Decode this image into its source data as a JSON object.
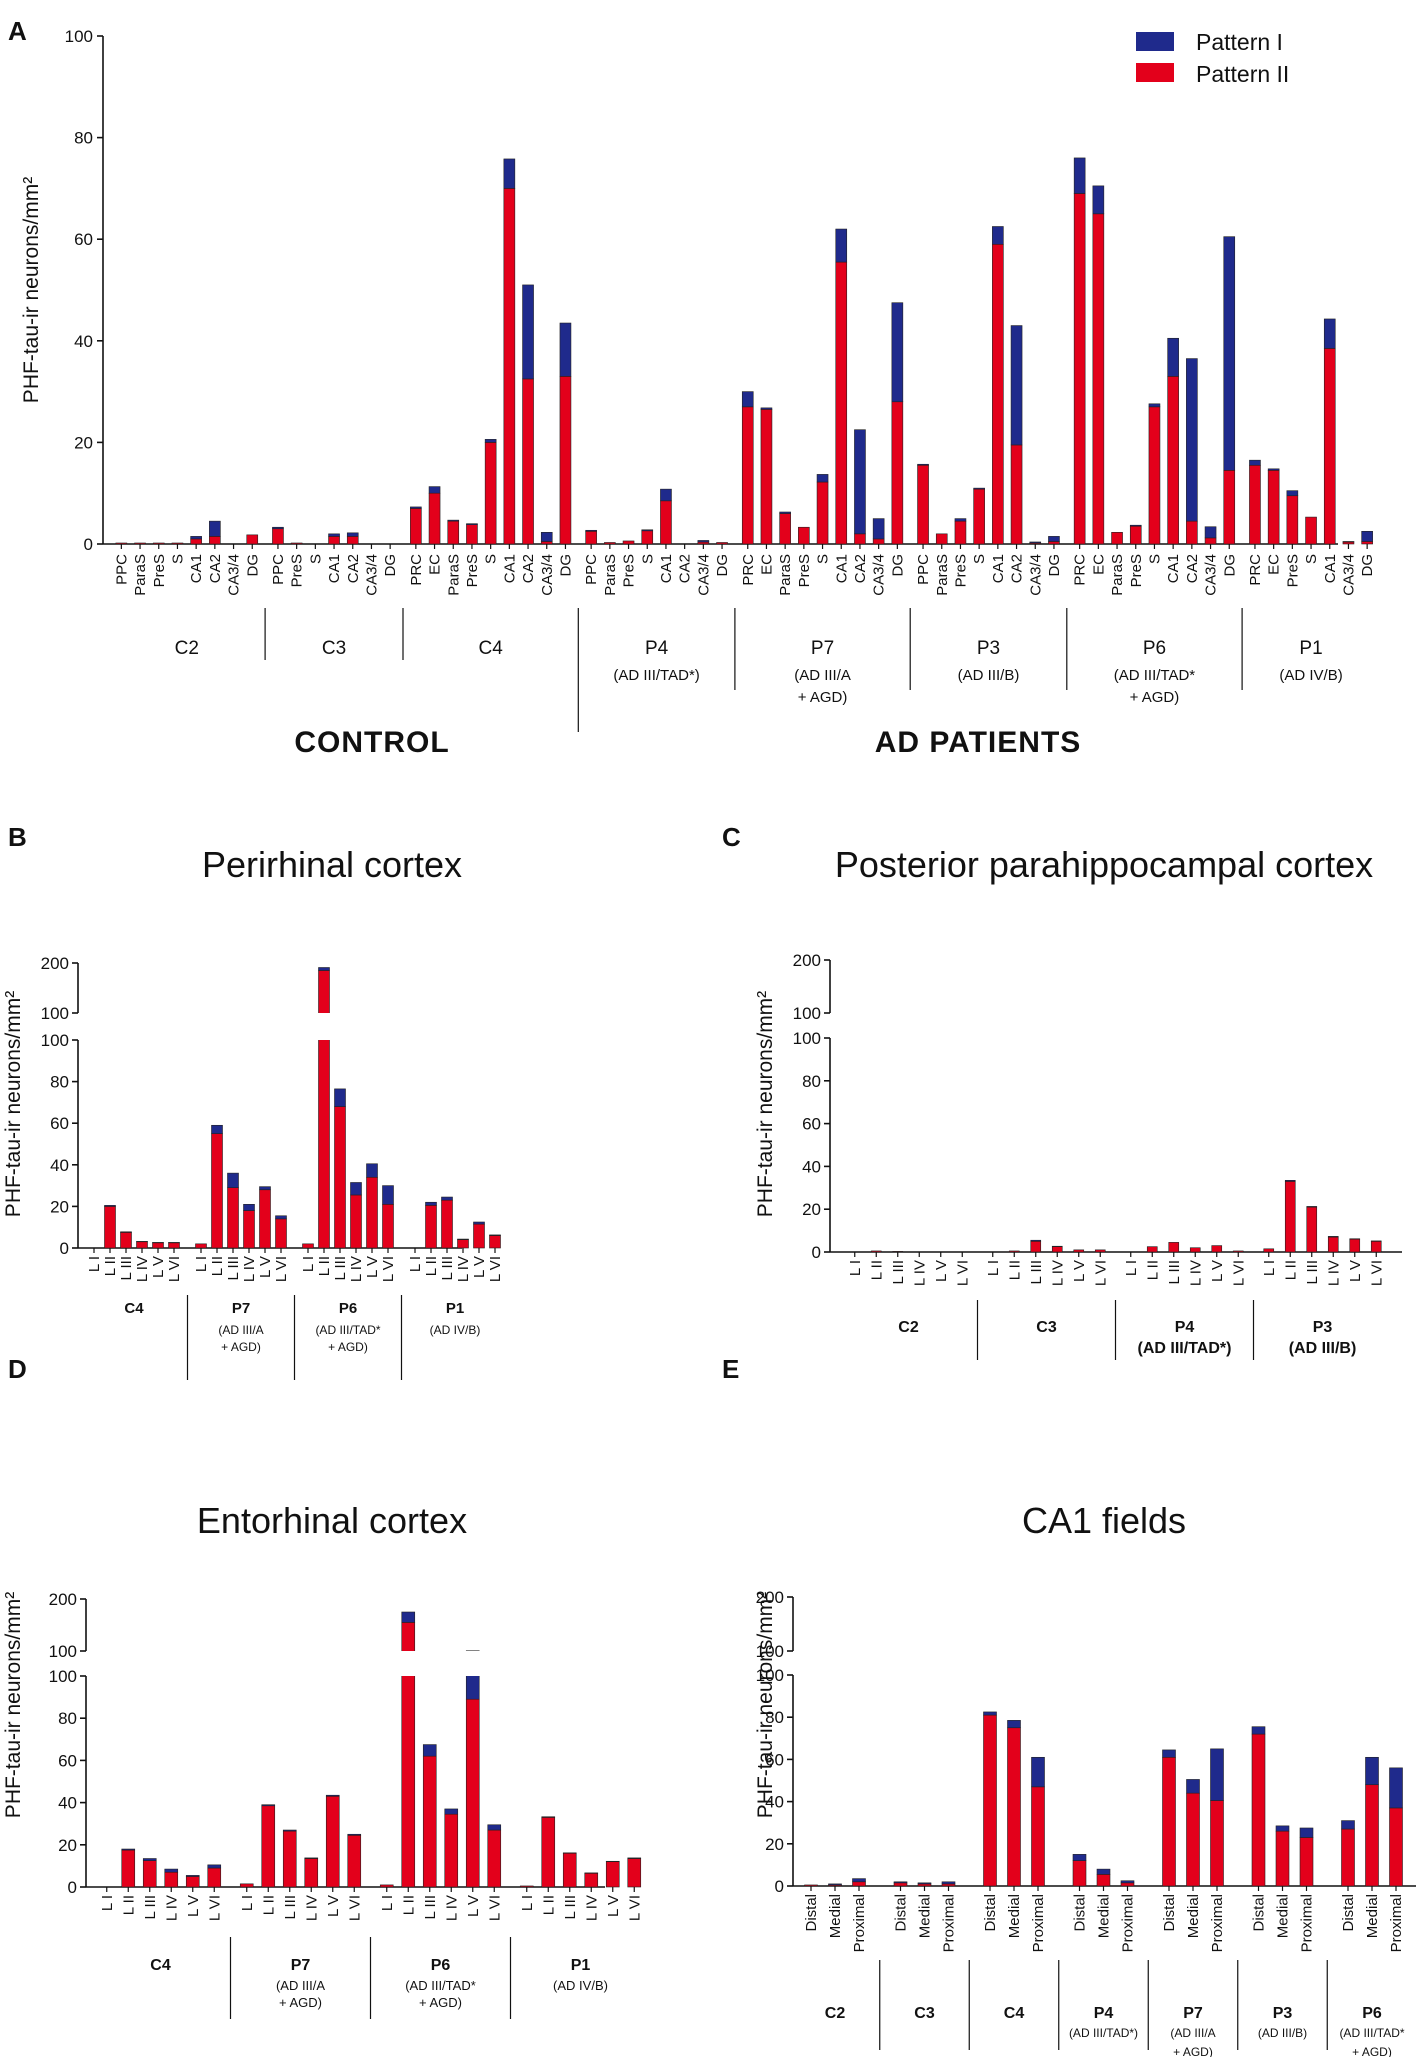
{
  "colors": {
    "pattern1": "#1f2a8c",
    "pattern2": "#e3001b",
    "axis": "#111111"
  },
  "legend": [
    "Pattern I",
    "Pattern II"
  ],
  "panel_a": {
    "label": "A",
    "ylabel": "PHF-tau-ir neurons/mm²",
    "yticks": [
      "0",
      "20",
      "40",
      "60",
      "80",
      "100"
    ],
    "group_control": "CONTROL",
    "group_ad": "AD PATIENTS",
    "cases": [
      {
        "name": "C2",
        "sub": []
      },
      {
        "name": "C3",
        "sub": []
      },
      {
        "name": "C4",
        "sub": []
      },
      {
        "name": "P4",
        "sub": [
          "(AD III/TAD*)"
        ]
      },
      {
        "name": "P7",
        "sub": [
          "(AD III/A",
          "+ AGD)"
        ]
      },
      {
        "name": "P3",
        "sub": [
          "(AD III/B)"
        ]
      },
      {
        "name": "P6",
        "sub": [
          "(AD III/TAD*",
          "+ AGD)"
        ]
      },
      {
        "name": "P1",
        "sub": [
          "(AD IV/B)"
        ]
      }
    ]
  },
  "panel_b": {
    "label": "B",
    "title": "Perirhinal cortex",
    "ylabel": "PHF-tau-ir neurons/mm²",
    "yticks_low": [
      "0",
      "20",
      "40",
      "60",
      "80",
      "100"
    ],
    "yticks_high": [
      "100",
      "200"
    ],
    "cases": [
      {
        "name": "C4",
        "sub": []
      },
      {
        "name": "P7",
        "sub": [
          "(AD III/A",
          "+ AGD)"
        ]
      },
      {
        "name": "P6",
        "sub": [
          "(AD III/TAD*",
          "+ AGD)"
        ]
      },
      {
        "name": "P1",
        "sub": [
          "(AD IV/B)"
        ]
      }
    ]
  },
  "panel_c": {
    "label": "C",
    "title": "Posterior parahippocampal cortex",
    "ylabel": "PHF-tau-ir neurons/mm²",
    "yticks_low": [
      "0",
      "20",
      "40",
      "60",
      "80",
      "100"
    ],
    "yticks_high": [
      "100",
      "200"
    ],
    "cases": [
      {
        "name": "C2",
        "sub": []
      },
      {
        "name": "C3",
        "sub": []
      },
      {
        "name": "P4",
        "sub": [
          "(AD III/TAD*)"
        ]
      },
      {
        "name": "P3",
        "sub": [
          "(AD III/B)"
        ]
      }
    ]
  },
  "panel_d": {
    "label": "D",
    "title": "Entorhinal cortex",
    "ylabel": "PHF-tau-ir neurons/mm²",
    "yticks_low": [
      "0",
      "20",
      "40",
      "60",
      "80",
      "100"
    ],
    "yticks_high": [
      "100",
      "200"
    ],
    "cases": [
      {
        "name": "C4",
        "sub": []
      },
      {
        "name": "P7",
        "sub": [
          "(AD III/A",
          "+ AGD)"
        ]
      },
      {
        "name": "P6",
        "sub": [
          "(AD III/TAD*",
          "+ AGD)"
        ]
      },
      {
        "name": "P1",
        "sub": [
          "(AD IV/B)"
        ]
      }
    ]
  },
  "panel_e": {
    "label": "E",
    "title": "CA1 fields",
    "ylabel": "PHF-tau-ir neurons/mm²",
    "yticks_low": [
      "0",
      "20",
      "40",
      "60",
      "80",
      "100"
    ],
    "yticks_high": [
      "100",
      "200"
    ],
    "cases": [
      {
        "name": "C2",
        "sub": []
      },
      {
        "name": "C3",
        "sub": []
      },
      {
        "name": "C4",
        "sub": []
      },
      {
        "name": "P4",
        "sub": [
          "(AD III/TAD*)"
        ]
      },
      {
        "name": "P7",
        "sub": [
          "(AD III/A",
          "+ AGD)"
        ]
      },
      {
        "name": "P3",
        "sub": [
          "(AD III/B)"
        ]
      },
      {
        "name": "P6",
        "sub": [
          "(AD III/TAD*",
          "+ AGD)"
        ]
      }
    ]
  },
  "chart_data": [
    {
      "type": "bar",
      "stacked": true,
      "panel": "A",
      "title": "",
      "xlabel": "",
      "ylabel": "PHF-tau-ir neurons/mm²",
      "ylim": [
        0,
        100
      ],
      "series_names": [
        "Pattern II",
        "Pattern I"
      ],
      "groups": [
        {
          "case": "C2",
          "categories": [
            "PPC",
            "ParaS",
            "PreS",
            "S",
            "CA1",
            "CA2",
            "CA3/4",
            "DG"
          ],
          "pattern2": [
            0.2,
            0.2,
            0.2,
            0.2,
            1,
            1.5,
            0,
            1.8
          ],
          "pattern1": [
            0,
            0,
            0,
            0,
            0.5,
            3,
            0,
            0
          ]
        },
        {
          "case": "C3",
          "categories": [
            "PPC",
            "PreS",
            "S",
            "CA1",
            "CA2",
            "CA3/4",
            "DG"
          ],
          "pattern2": [
            3,
            0.2,
            0,
            1.5,
            1.5,
            0,
            0
          ],
          "pattern1": [
            0.3,
            0,
            0,
            0.5,
            0.7,
            0,
            0
          ]
        },
        {
          "case": "C4",
          "categories": [
            "PRC",
            "EC",
            "ParaS",
            "PreS",
            "S",
            "CA1",
            "CA2",
            "CA3/4",
            "DG"
          ],
          "pattern2": [
            7,
            10,
            4.5,
            3.8,
            20,
            70,
            32.5,
            0.5,
            33
          ],
          "pattern1": [
            0.3,
            1.3,
            0.2,
            0.2,
            0.6,
            5.8,
            18.5,
            1.8,
            10.5
          ]
        },
        {
          "case": "P4",
          "categories": [
            "PPC",
            "ParaS",
            "PreS",
            "S",
            "CA1",
            "CA2",
            "CA3/4",
            "DG"
          ],
          "pattern2": [
            2.5,
            0.3,
            0.6,
            2.6,
            8.5,
            0,
            0.4,
            0.3
          ],
          "pattern1": [
            0.2,
            0,
            0,
            0.2,
            2.3,
            0,
            0.3,
            0
          ]
        },
        {
          "case": "P7",
          "categories": [
            "PRC",
            "EC",
            "ParaS",
            "PreS",
            "S",
            "CA1",
            "CA2",
            "CA3/4",
            "DG"
          ],
          "pattern2": [
            27,
            26.5,
            6,
            3.3,
            12.2,
            55.5,
            2,
            1,
            28
          ],
          "pattern1": [
            3,
            0.3,
            0.3,
            0,
            1.5,
            6.5,
            20.5,
            4,
            19.5
          ]
        },
        {
          "case": "P3",
          "categories": [
            "PPC",
            "ParaS",
            "PreS",
            "S",
            "CA1",
            "CA2",
            "CA3/4",
            "DG"
          ],
          "pattern2": [
            15.5,
            2,
            4.5,
            10.8,
            59,
            19.5,
            0.2,
            0.5
          ],
          "pattern1": [
            0.2,
            0,
            0.5,
            0.2,
            3.5,
            23.5,
            0.2,
            1
          ]
        },
        {
          "case": "P6",
          "categories": [
            "PRC",
            "EC",
            "ParaS",
            "PreS",
            "S",
            "CA1",
            "CA2",
            "CA3/4",
            "DG"
          ],
          "pattern2": [
            69,
            65,
            2.3,
            3.5,
            27,
            33,
            4.5,
            1.2,
            14.5
          ],
          "pattern1": [
            7,
            5.5,
            0,
            0.2,
            0.6,
            7.5,
            32,
            2.2,
            46
          ]
        },
        {
          "case": "P1",
          "categories": [
            "PRC",
            "EC",
            "PreS",
            "S",
            "CA1",
            "CA3/4",
            "DG"
          ],
          "pattern2": [
            15.5,
            14.5,
            9.5,
            5.3,
            38.5,
            0.4,
            0.5
          ],
          "pattern1": [
            1,
            0.3,
            1,
            0,
            5.8,
            0.1,
            2
          ]
        }
      ]
    },
    {
      "type": "bar",
      "stacked": true,
      "panel": "B",
      "title": "Perirhinal cortex",
      "ylabel": "PHF-tau-ir neurons/mm²",
      "ylim": [
        0,
        200
      ],
      "axis_break": 100,
      "series_names": [
        "Pattern II",
        "Pattern I"
      ],
      "groups": [
        {
          "case": "C4",
          "categories": [
            "L I",
            "L II",
            "L III",
            "L IV",
            "L V",
            "L VI"
          ],
          "pattern2": [
            0,
            20,
            7.5,
            3,
            2.5,
            2.5
          ],
          "pattern1": [
            0,
            0.5,
            0.3,
            0.2,
            0.2,
            0.2
          ]
        },
        {
          "case": "P7",
          "categories": [
            "L I",
            "L II",
            "L III",
            "L IV",
            "L V",
            "L VI"
          ],
          "pattern2": [
            2,
            55,
            29,
            18,
            28,
            14
          ],
          "pattern1": [
            0,
            4,
            7,
            3,
            1.5,
            1.5
          ]
        },
        {
          "case": "P6",
          "categories": [
            "L I",
            "L II",
            "L III",
            "L IV",
            "L V",
            "L VI"
          ],
          "pattern2": [
            2,
            185,
            68,
            25.5,
            34,
            21
          ],
          "pattern1": [
            0,
            6,
            8.5,
            6,
            6.5,
            9
          ]
        },
        {
          "case": "P1",
          "categories": [
            "L I",
            "L II",
            "L III",
            "L IV",
            "L V",
            "L VI"
          ],
          "pattern2": [
            0,
            20.5,
            23,
            4,
            11.5,
            6
          ],
          "pattern1": [
            0,
            1.5,
            1.5,
            0.3,
            1,
            0.3
          ]
        }
      ]
    },
    {
      "type": "bar",
      "stacked": true,
      "panel": "C",
      "title": "Posterior parahippocampal cortex",
      "ylabel": "PHF-tau-ir neurons/mm²",
      "ylim": [
        0,
        200
      ],
      "axis_break": 100,
      "series_names": [
        "Pattern II",
        "Pattern I"
      ],
      "groups": [
        {
          "case": "C2",
          "categories": [
            "L I",
            "L II",
            "L III",
            "L IV",
            "L V",
            "L VI"
          ],
          "pattern2": [
            0,
            0.5,
            0.3,
            0,
            0,
            0
          ],
          "pattern1": [
            0,
            0,
            0,
            0,
            0,
            0
          ]
        },
        {
          "case": "C3",
          "categories": [
            "L I",
            "L II",
            "L III",
            "L IV",
            "L V",
            "L VI"
          ],
          "pattern2": [
            0,
            0.5,
            5,
            2.5,
            1,
            1
          ],
          "pattern1": [
            0,
            0,
            0.5,
            0.2,
            0,
            0
          ]
        },
        {
          "case": "P4",
          "categories": [
            "L I",
            "L II",
            "L III",
            "L IV",
            "L V",
            "L VI"
          ],
          "pattern2": [
            0,
            2.5,
            4.5,
            2,
            3,
            0.5
          ],
          "pattern1": [
            0,
            0,
            0,
            0,
            0,
            0
          ]
        },
        {
          "case": "P3",
          "categories": [
            "L I",
            "L II",
            "L III",
            "L IV",
            "L V",
            "L VI"
          ],
          "pattern2": [
            1.5,
            33,
            21,
            7,
            6,
            5
          ],
          "pattern1": [
            0,
            0.5,
            0.3,
            0.3,
            0.2,
            0.2
          ]
        }
      ]
    },
    {
      "type": "bar",
      "stacked": true,
      "panel": "D",
      "title": "Entorhinal cortex",
      "ylabel": "PHF-tau-ir neurons/mm²",
      "ylim": [
        0,
        200
      ],
      "axis_break": 100,
      "series_names": [
        "Pattern II",
        "Pattern I"
      ],
      "groups": [
        {
          "case": "C4",
          "categories": [
            "L I",
            "L II",
            "L III",
            "L IV",
            "L V",
            "L VI"
          ],
          "pattern2": [
            0,
            17.5,
            12.5,
            7,
            5,
            9
          ],
          "pattern1": [
            0,
            0.5,
            1,
            1.5,
            0.5,
            1.5
          ]
        },
        {
          "case": "P7",
          "categories": [
            "L I",
            "L II",
            "L III",
            "L IV",
            "L V",
            "L VI"
          ],
          "pattern2": [
            1.5,
            38.5,
            26.5,
            13.5,
            43,
            24.5
          ],
          "pattern1": [
            0,
            0.5,
            0.5,
            0.3,
            0.5,
            0.5
          ]
        },
        {
          "case": "P6",
          "categories": [
            "L I",
            "L II",
            "L III",
            "L IV",
            "L V",
            "L VI"
          ],
          "pattern2": [
            1,
            155,
            62,
            34.5,
            89,
            27
          ],
          "pattern1": [
            0,
            20,
            5.5,
            2.5,
            11.5,
            2.5
          ]
        },
        {
          "case": "P1",
          "categories": [
            "L I",
            "L II",
            "L III",
            "L IV",
            "L V",
            "L VI"
          ],
          "pattern2": [
            0.5,
            33,
            16,
            6.5,
            12,
            13.5
          ],
          "pattern1": [
            0,
            0.3,
            0.2,
            0.2,
            0.2,
            0.3
          ]
        }
      ]
    },
    {
      "type": "bar",
      "stacked": true,
      "panel": "E",
      "title": "CA1 fields",
      "ylabel": "PHF-tau-ir neurons/mm²",
      "ylim": [
        0,
        200
      ],
      "axis_break": 100,
      "series_names": [
        "Pattern II",
        "Pattern I"
      ],
      "groups": [
        {
          "case": "C2",
          "categories": [
            "Distal",
            "Medial",
            "Proximal"
          ],
          "pattern2": [
            0.5,
            0.5,
            2
          ],
          "pattern1": [
            0,
            0.5,
            1.5
          ]
        },
        {
          "case": "C3",
          "categories": [
            "Distal",
            "Medial",
            "Proximal"
          ],
          "pattern2": [
            1.5,
            1,
            1
          ],
          "pattern1": [
            0.5,
            0.5,
            1
          ]
        },
        {
          "case": "C4",
          "categories": [
            "Distal",
            "Medial",
            "Proximal"
          ],
          "pattern2": [
            81,
            75,
            47
          ],
          "pattern1": [
            1.5,
            3.5,
            14
          ]
        },
        {
          "case": "P4",
          "categories": [
            "Distal",
            "Medial",
            "Proximal"
          ],
          "pattern2": [
            12,
            5.5,
            1.5
          ],
          "pattern1": [
            3,
            2.5,
            1
          ]
        },
        {
          "case": "P7",
          "categories": [
            "Distal",
            "Medial",
            "Proximal"
          ],
          "pattern2": [
            61,
            44,
            40.5
          ],
          "pattern1": [
            3.5,
            6.5,
            24.5
          ]
        },
        {
          "case": "P3",
          "categories": [
            "Distal",
            "Medial",
            "Proximal"
          ],
          "pattern2": [
            72,
            26,
            23
          ],
          "pattern1": [
            3.5,
            2.5,
            4.5
          ]
        },
        {
          "case": "P6",
          "categories": [
            "Distal",
            "Medial",
            "Proximal"
          ],
          "pattern2": [
            27,
            48,
            37
          ],
          "pattern1": [
            4,
            13,
            19
          ]
        }
      ]
    }
  ]
}
